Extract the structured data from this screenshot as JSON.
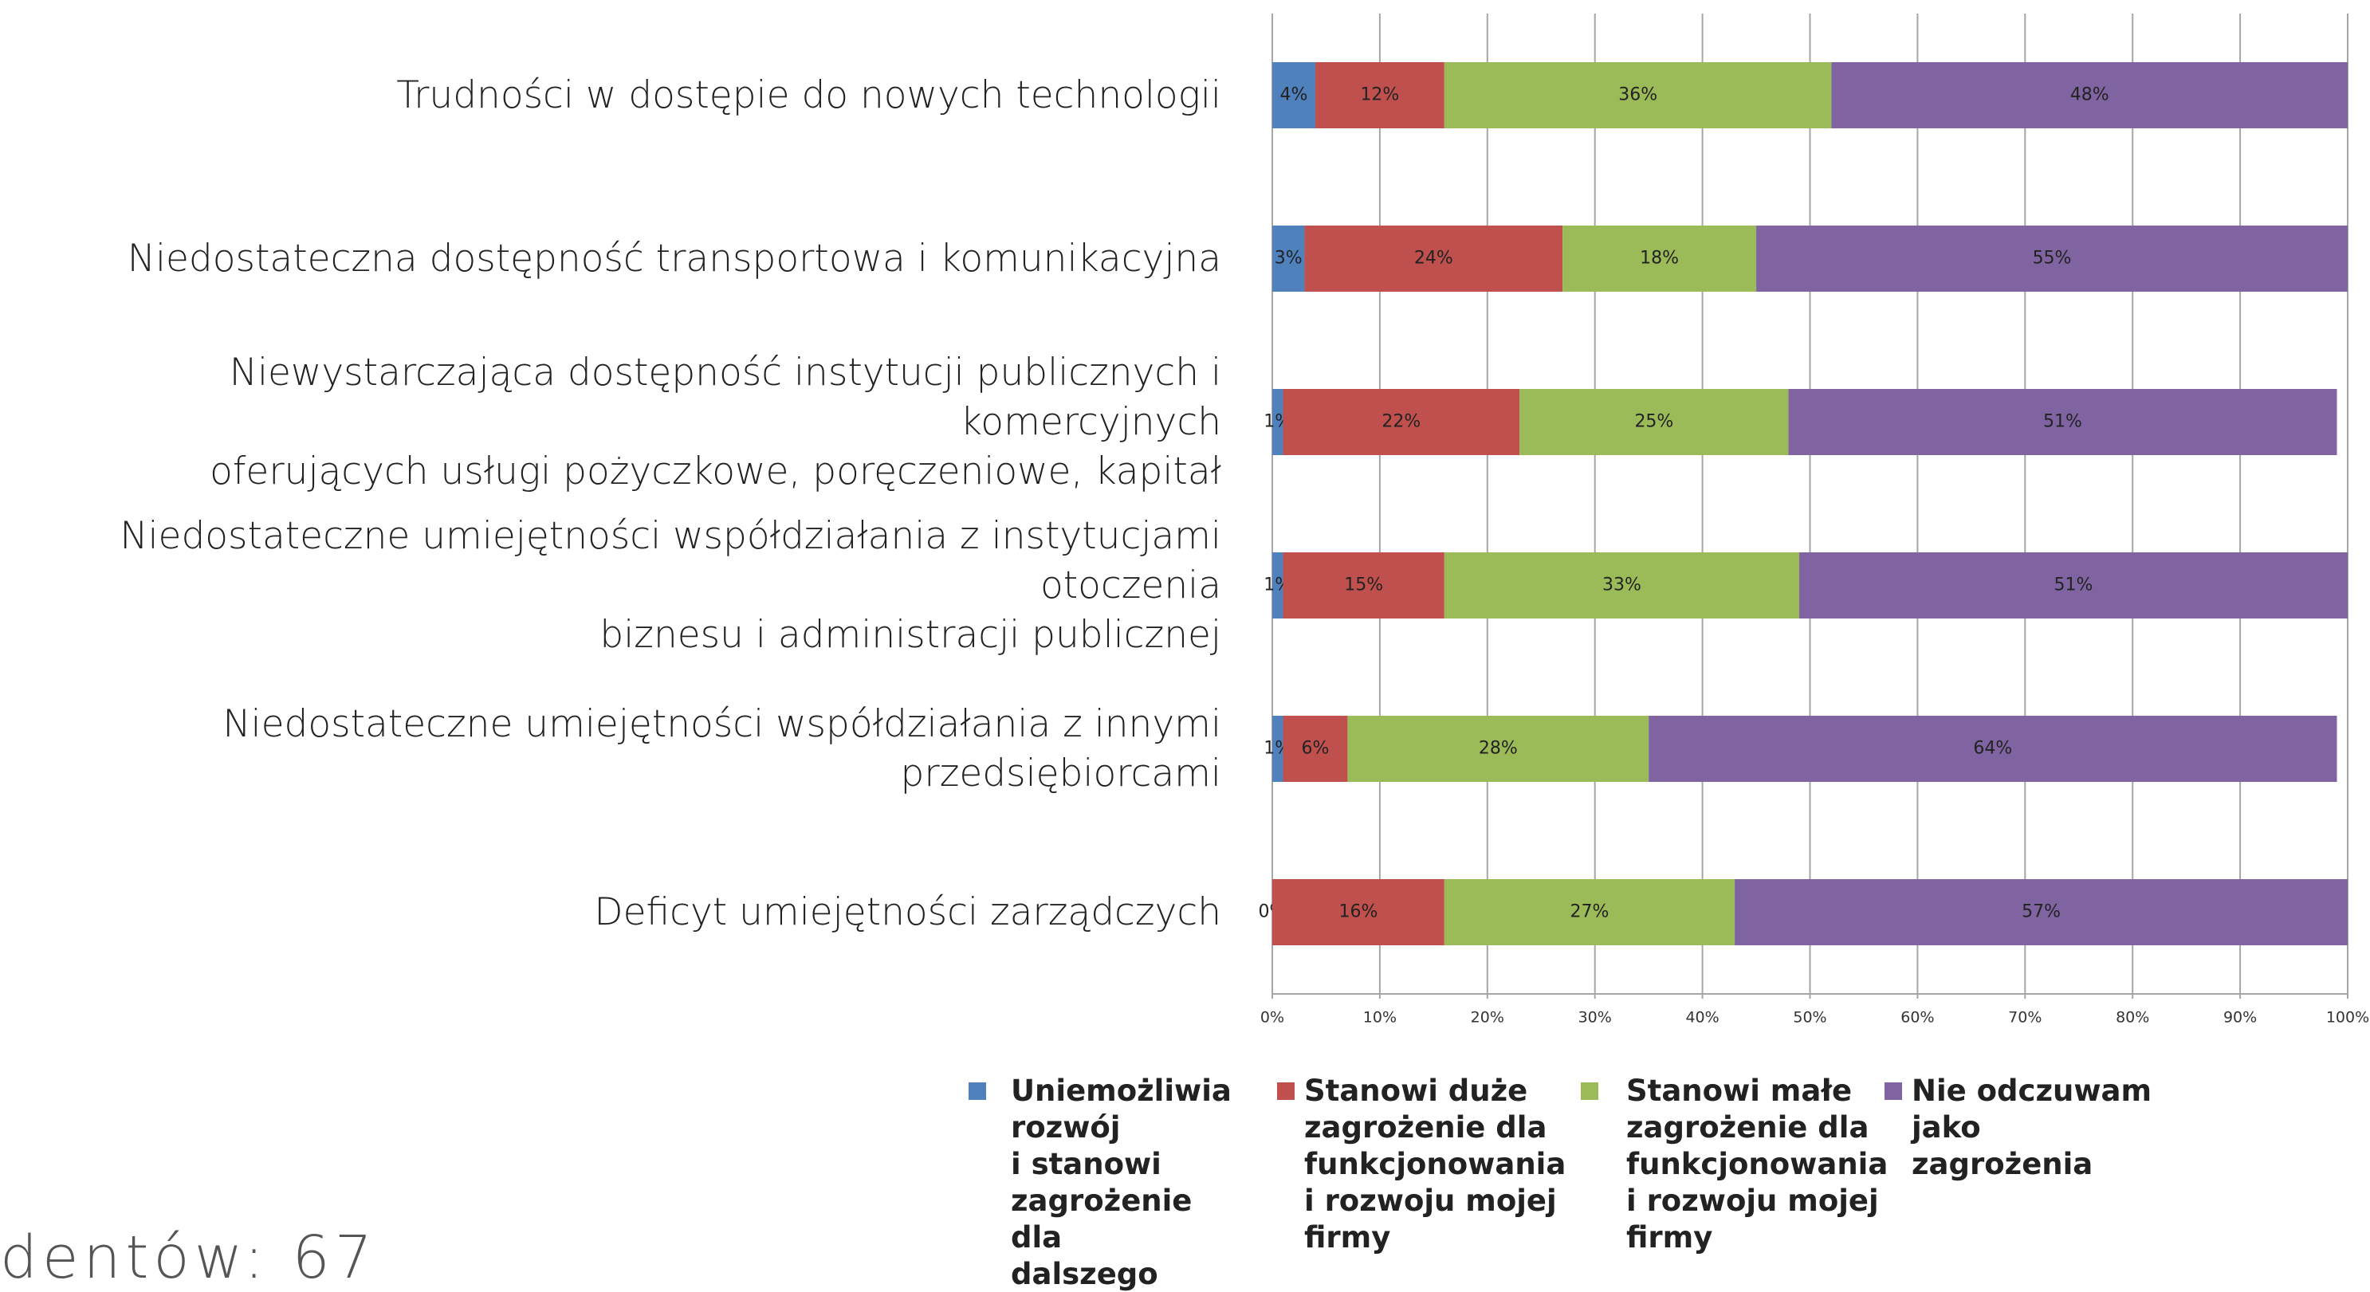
{
  "chart_data": {
    "type": "stacked_barh",
    "categories": [
      "Trudności w dostępie do nowych technologii",
      "Niedostateczna dostępność transportowa i komunikacyjna",
      "Niewystarczająca dostępność instytucji publicznych i komercyjnych\noferujących usługi pożyczkowe, poręczeniowe, kapitał",
      "Niedostateczne umiejętności współdziałania z instytucjami otoczenia\nbiznesu i administracji publicznej",
      "Niedostateczne umiejętności współdziałania z innymi przedsiębiorcami",
      "Deficyt umiejętności zarządczych"
    ],
    "series": [
      {
        "name": "Uniemożliwia rozwój\n i stanowi zagrożenie dla dalszego funkcjonowania",
        "color": "#4f81bd",
        "values": [
          4,
          3,
          1,
          1,
          1,
          0
        ],
        "value_labels": [
          "4%",
          "3%",
          "1%",
          "1%",
          "1%",
          "0%"
        ]
      },
      {
        "name": "Stanowi duże zagrożenie dla funkcjonowania i rozwoju mojej firmy",
        "color": "#c0504d",
        "values": [
          12,
          24,
          22,
          15,
          6,
          16
        ],
        "value_labels": [
          "12%",
          "24%",
          "22%",
          "15%",
          "6%",
          "16%"
        ]
      },
      {
        "name": "Stanowi małe zagrożenie dla funkcjonowania i rozwoju mojej firmy",
        "color": "#9bbb59",
        "values": [
          36,
          18,
          25,
          33,
          28,
          27
        ],
        "value_labels": [
          "36%",
          "18%",
          "25%",
          "33%",
          "28%",
          "27%"
        ]
      },
      {
        "name": "Nie odczuwam jako zagrożenia",
        "color": "#8064a2",
        "values": [
          48,
          55,
          51,
          51,
          64,
          57
        ],
        "value_labels": [
          "48%",
          "55%",
          "51%",
          "51%",
          "64%",
          "57%"
        ]
      }
    ],
    "xlim": [
      0,
      100
    ],
    "xticks": [
      {
        "value": 0,
        "label": "0%"
      },
      {
        "value": 10,
        "label": "10%"
      },
      {
        "value": 20,
        "label": "20%"
      },
      {
        "value": 30,
        "label": "30%"
      },
      {
        "value": 40,
        "label": "40%"
      },
      {
        "value": 50,
        "label": "50%"
      },
      {
        "value": 60,
        "label": "60%"
      },
      {
        "value": 70,
        "label": "70%"
      },
      {
        "value": 80,
        "label": "80%"
      },
      {
        "value": 90,
        "label": "90%"
      },
      {
        "value": 100,
        "label": "100%"
      }
    ],
    "grid": true,
    "legend": "bottom",
    "footnote": "dentów: 67"
  }
}
